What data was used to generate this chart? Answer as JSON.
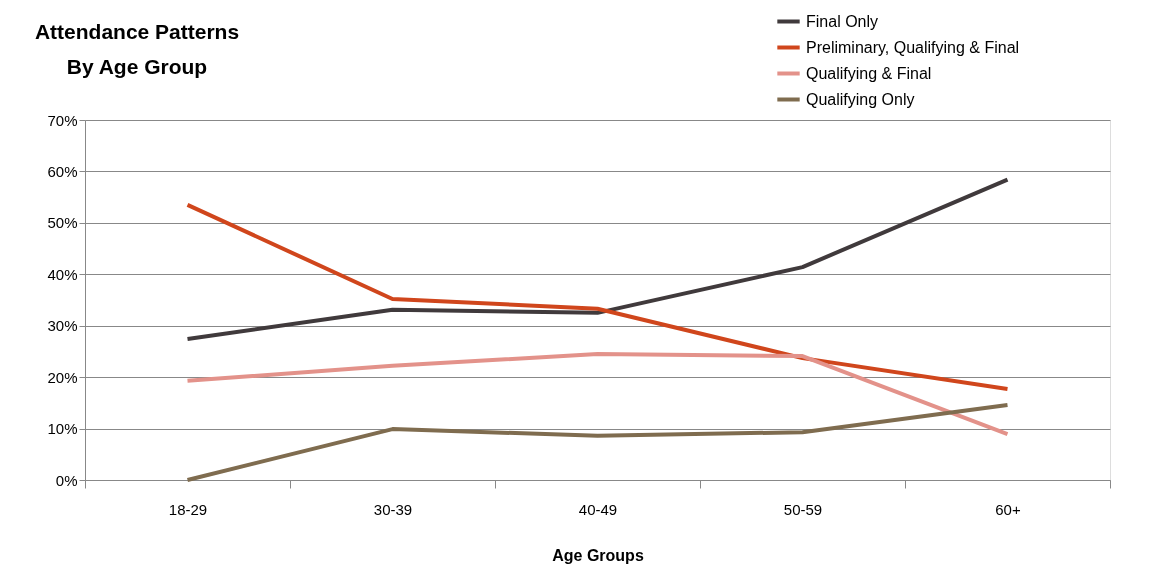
{
  "chart_data": {
    "type": "line",
    "title": [
      "Attendance Patterns",
      "By Age Group"
    ],
    "xlabel": "Age Groups",
    "categories": [
      "18-29",
      "30-39",
      "40-49",
      "50-59",
      "60+"
    ],
    "series": [
      {
        "name": "Final Only",
        "color": "#403a3c",
        "values": [
          27.4,
          33.1,
          32.5,
          41.4,
          58.4
        ]
      },
      {
        "name": "Preliminary, Qualifying & Final",
        "color": "#d0461c",
        "values": [
          53.5,
          35.2,
          33.3,
          23.7,
          17.7
        ]
      },
      {
        "name": "Qualifying & Final",
        "color": "#e3928a",
        "values": [
          19.3,
          22.2,
          24.5,
          24.1,
          8.9
        ]
      },
      {
        "name": "Qualifying Only",
        "color": "#7f6c4f",
        "values": [
          0,
          9.9,
          8.6,
          9.3,
          14.6
        ]
      }
    ],
    "ylim": [
      0,
      70
    ],
    "yticks": [
      {
        "value": 0,
        "label": "0%"
      },
      {
        "value": 10,
        "label": "10%"
      },
      {
        "value": 20,
        "label": "20%"
      },
      {
        "value": 30,
        "label": "30%"
      },
      {
        "value": 40,
        "label": "40%"
      },
      {
        "value": 50,
        "label": "50%"
      },
      {
        "value": 60,
        "label": "60%"
      },
      {
        "value": 70,
        "label": "70%"
      }
    ],
    "grid": "y",
    "legend": "top right",
    "marker": "none",
    "line_style": "solid"
  }
}
